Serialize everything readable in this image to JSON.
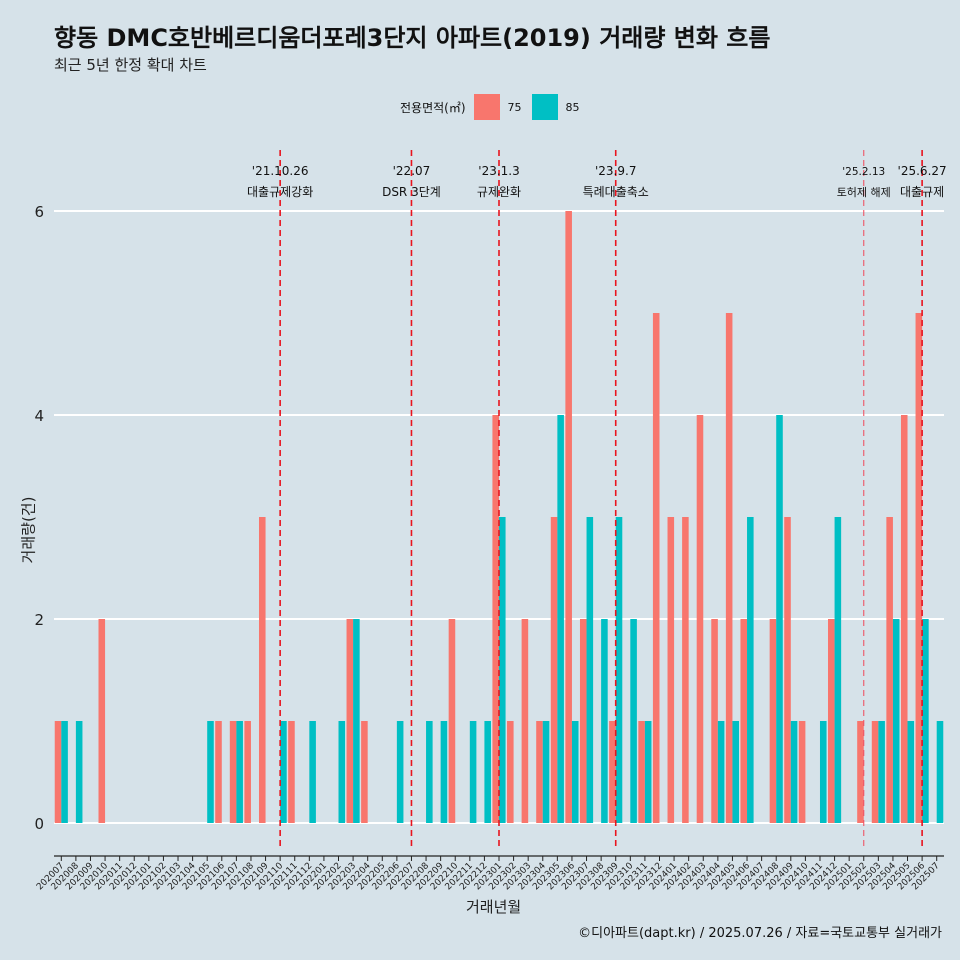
{
  "header": {
    "title": "향동 DMC호반베르디움더포레3단지 아파트(2019) 거래량 변화 흐름",
    "subtitle": "최근 5년 한정 확대 차트"
  },
  "legend": {
    "title": "전용면적(㎡)",
    "items": [
      {
        "label": "75",
        "color": "#f8766d"
      },
      {
        "label": "85",
        "color": "#00bfc4"
      }
    ]
  },
  "footer": {
    "caption": "©디아파트(dapt.kr) / 2025.07.26 / 자료=국토교통부 실거래가"
  },
  "chart_data": {
    "type": "bar",
    "xlabel": "거래년월",
    "ylabel": "거래량(건)",
    "ylim": [
      0,
      6.6
    ],
    "yticks": [
      0,
      2,
      4,
      6
    ],
    "grid": true,
    "legend_position": "top",
    "categories": [
      "202007",
      "202008",
      "202009",
      "202010",
      "202011",
      "202012",
      "202101",
      "202102",
      "202103",
      "202104",
      "202105",
      "202106",
      "202107",
      "202108",
      "202109",
      "202110",
      "202111",
      "202112",
      "202201",
      "202202",
      "202203",
      "202204",
      "202205",
      "202206",
      "202207",
      "202208",
      "202209",
      "202210",
      "202211",
      "202212",
      "202301",
      "202302",
      "202303",
      "202304",
      "202305",
      "202306",
      "202307",
      "202308",
      "202309",
      "202310",
      "202311",
      "202312",
      "202401",
      "202402",
      "202403",
      "202404",
      "202405",
      "202406",
      "202407",
      "202408",
      "202409",
      "202410",
      "202411",
      "202412",
      "202501",
      "202502",
      "202503",
      "202504",
      "202505",
      "202506",
      "202507"
    ],
    "series": [
      {
        "name": "75",
        "color": "#f8766d",
        "values": [
          1,
          0,
          0,
          2,
          0,
          0,
          0,
          0,
          0,
          0,
          0,
          1,
          1,
          1,
          3,
          0,
          1,
          0,
          0,
          0,
          2,
          1,
          0,
          0,
          0,
          0,
          0,
          2,
          0,
          0,
          4,
          1,
          2,
          1,
          3,
          6,
          2,
          0,
          1,
          0,
          1,
          5,
          3,
          3,
          4,
          2,
          5,
          2,
          0,
          2,
          3,
          1,
          0,
          2,
          0,
          1,
          1,
          3,
          4,
          5,
          0
        ]
      },
      {
        "name": "85",
        "color": "#00bfc4",
        "values": [
          1,
          1,
          0,
          0,
          0,
          0,
          0,
          0,
          0,
          0,
          1,
          0,
          1,
          0,
          0,
          1,
          0,
          1,
          0,
          1,
          2,
          0,
          0,
          1,
          0,
          1,
          1,
          0,
          1,
          1,
          3,
          0,
          0,
          1,
          4,
          1,
          3,
          2,
          3,
          2,
          1,
          0,
          0,
          0,
          0,
          1,
          1,
          3,
          0,
          4,
          1,
          0,
          1,
          3,
          0,
          0,
          1,
          2,
          1,
          2,
          1
        ]
      }
    ],
    "events": [
      {
        "month": "202110",
        "date": "'21.10.26",
        "label": "대출규제강화",
        "emphasis": "strong"
      },
      {
        "month": "202207",
        "date": "'22.07",
        "label": "DSR 3단계",
        "emphasis": "strong"
      },
      {
        "month": "202301",
        "date": "'23.1.3",
        "label": "규제완화",
        "emphasis": "strong"
      },
      {
        "month": "202309",
        "date": "'23.9.7",
        "label": "특례대출축소",
        "emphasis": "strong"
      },
      {
        "month": "202502",
        "date": "'25.2.13",
        "label": "토허제 해제",
        "emphasis": "light"
      },
      {
        "month": "202506",
        "date": "'25.6.27",
        "label": "대출규제",
        "emphasis": "strong"
      }
    ]
  }
}
